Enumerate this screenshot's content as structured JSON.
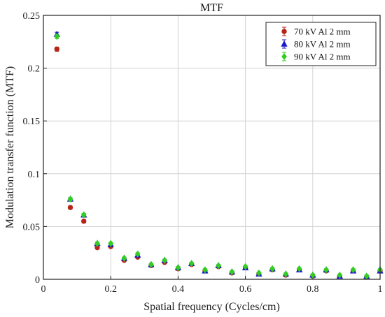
{
  "chart_data": {
    "type": "scatter",
    "title": "MTF",
    "xlabel": "Spatial frequency (Cycles/cm)",
    "ylabel": "Modulation transfer function (MTF)",
    "xlim": [
      0,
      1
    ],
    "ylim": [
      0,
      0.25
    ],
    "xticks": [
      0,
      0.2,
      0.4,
      0.6,
      0.8,
      1
    ],
    "xtick_labels": [
      "0",
      "0.2",
      "0.4",
      "0.6",
      "0.8",
      "1"
    ],
    "yticks": [
      0,
      0.05,
      0.1,
      0.15,
      0.2,
      0.25
    ],
    "ytick_labels": [
      "0",
      "0.05",
      "0.1",
      "0.15",
      "0.2",
      "0.25"
    ],
    "grid": true,
    "legend_position": "top-right",
    "x": [
      0.04,
      0.08,
      0.12,
      0.16,
      0.2,
      0.24,
      0.28,
      0.32,
      0.36,
      0.4,
      0.44,
      0.48,
      0.52,
      0.56,
      0.6,
      0.64,
      0.68,
      0.72,
      0.76,
      0.8,
      0.84,
      0.88,
      0.92,
      0.96,
      1.0
    ],
    "series": [
      {
        "name": "70 kV Al 2 mm",
        "color": "#b5251a",
        "marker": "circle",
        "values": [
          0.218,
          0.068,
          0.055,
          0.03,
          0.031,
          0.018,
          0.021,
          0.013,
          0.016,
          0.01,
          0.014,
          0.008,
          0.012,
          0.006,
          0.011,
          0.005,
          0.009,
          0.004,
          0.009,
          0.003,
          0.008,
          0.003,
          0.008,
          0.002,
          0.008
        ],
        "errors": [
          0.002,
          0.0015,
          0.0015,
          0.0012,
          0.0012,
          0.001,
          0.001,
          0.001,
          0.001,
          0.001,
          0.001,
          0.001,
          0.001,
          0.001,
          0.001,
          0.001,
          0.001,
          0.001,
          0.001,
          0.001,
          0.001,
          0.001,
          0.001,
          0.001,
          0.001
        ]
      },
      {
        "name": "80 kV Al 2 mm",
        "color": "#1a1acc",
        "marker": "triangle",
        "values": [
          0.232,
          0.076,
          0.061,
          0.034,
          0.033,
          0.02,
          0.023,
          0.014,
          0.018,
          0.011,
          0.015,
          0.008,
          0.013,
          0.007,
          0.011,
          0.005,
          0.01,
          0.005,
          0.009,
          0.004,
          0.009,
          0.003,
          0.008,
          0.003,
          0.008
        ],
        "errors": [
          0.002,
          0.0015,
          0.0015,
          0.0012,
          0.0012,
          0.001,
          0.001,
          0.001,
          0.001,
          0.001,
          0.001,
          0.001,
          0.001,
          0.001,
          0.001,
          0.001,
          0.001,
          0.001,
          0.001,
          0.001,
          0.001,
          0.001,
          0.001,
          0.001,
          0.001
        ]
      },
      {
        "name": "90 kV Al 2 mm",
        "color": "#33cc22",
        "marker": "diamond",
        "values": [
          0.23,
          0.076,
          0.061,
          0.034,
          0.034,
          0.02,
          0.024,
          0.014,
          0.018,
          0.011,
          0.015,
          0.009,
          0.013,
          0.007,
          0.012,
          0.006,
          0.01,
          0.005,
          0.01,
          0.004,
          0.009,
          0.004,
          0.009,
          0.003,
          0.009
        ],
        "errors": [
          0.002,
          0.0015,
          0.0015,
          0.0012,
          0.0012,
          0.001,
          0.001,
          0.001,
          0.001,
          0.001,
          0.001,
          0.001,
          0.001,
          0.001,
          0.001,
          0.001,
          0.001,
          0.001,
          0.001,
          0.001,
          0.001,
          0.001,
          0.001,
          0.001,
          0.001
        ]
      }
    ]
  }
}
